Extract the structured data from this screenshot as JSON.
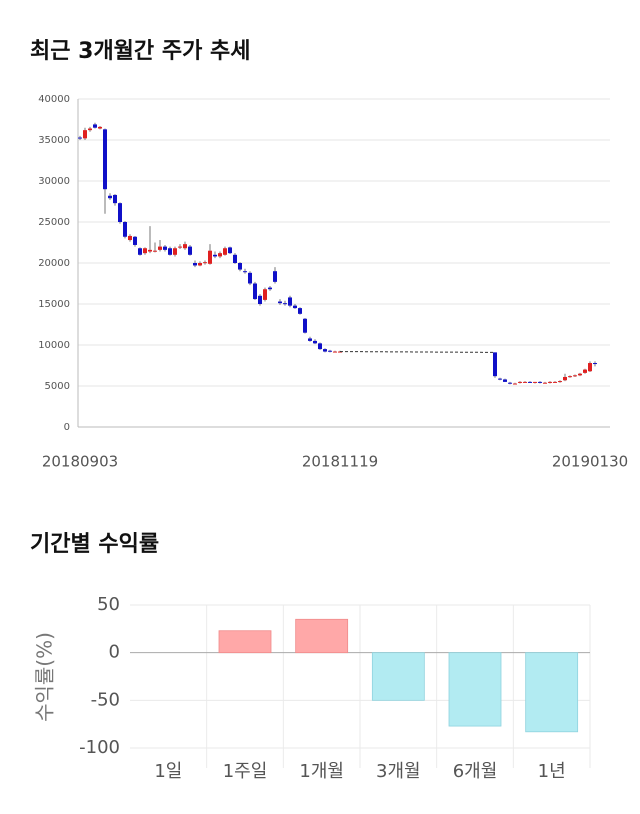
{
  "chart_data": [
    {
      "type": "candlestick",
      "title": "최근 3개월간 주가 추세",
      "categories": [
        "20180903",
        null,
        null,
        null,
        null,
        null,
        null,
        null,
        null,
        null,
        null,
        null,
        null,
        null,
        null,
        null,
        null,
        null,
        null,
        null,
        null,
        null,
        null,
        null,
        null,
        null,
        null,
        null,
        null,
        null,
        null,
        null,
        null,
        null,
        null,
        null,
        null,
        null,
        null,
        null,
        null,
        null,
        null,
        null,
        null,
        null,
        null,
        null,
        null,
        null,
        null,
        null,
        "20181119",
        null,
        null,
        null,
        null,
        null,
        null,
        null,
        null,
        null,
        null,
        null,
        null,
        null,
        null,
        null,
        null,
        null,
        null,
        null,
        null,
        null,
        null,
        null,
        null,
        null,
        null,
        null,
        null,
        null,
        null,
        null,
        null,
        null,
        null,
        null,
        null,
        null,
        null,
        null,
        null,
        null,
        null,
        null,
        null,
        null,
        null,
        null,
        null,
        null,
        "20190130",
        null
      ],
      "values": [
        [
          35300,
          35500,
          35000,
          35200
        ],
        [
          35200,
          36500,
          35000,
          36200
        ],
        [
          36200,
          36600,
          36000,
          36400
        ],
        [
          36900,
          37100,
          36400,
          36500
        ],
        [
          36400,
          36700,
          36300,
          36600
        ],
        [
          36300,
          36400,
          26000,
          29000
        ],
        [
          28200,
          28500,
          27700,
          27900
        ],
        [
          28300,
          28400,
          27000,
          27300
        ],
        [
          27300,
          27400,
          24800,
          25000
        ],
        [
          25000,
          25100,
          23000,
          23200
        ],
        [
          22800,
          23500,
          22600,
          23300
        ],
        [
          23200,
          23300,
          22000,
          22200
        ],
        [
          21800,
          21900,
          20900,
          21000
        ],
        [
          21200,
          21900,
          21000,
          21800
        ],
        [
          21400,
          24500,
          21200,
          21600
        ],
        [
          21500,
          22500,
          21300,
          21500
        ],
        [
          21600,
          22800,
          21400,
          22000
        ],
        [
          22000,
          22200,
          21400,
          21600
        ],
        [
          21800,
          22000,
          20900,
          21000
        ],
        [
          21000,
          22000,
          20800,
          21800
        ],
        [
          21900,
          22300,
          21700,
          22000
        ],
        [
          21800,
          22600,
          21600,
          22300
        ],
        [
          22000,
          22200,
          20900,
          21000
        ],
        [
          20000,
          20300,
          19500,
          19700
        ],
        [
          19700,
          20200,
          19600,
          20000
        ],
        [
          20000,
          20300,
          19800,
          20100
        ],
        [
          19900,
          22300,
          19800,
          21500
        ],
        [
          21000,
          21400,
          20600,
          20800
        ],
        [
          20800,
          21400,
          20600,
          21200
        ],
        [
          21000,
          22000,
          20900,
          21800
        ],
        [
          21900,
          22000,
          21100,
          21200
        ],
        [
          21000,
          21200,
          19900,
          20000
        ],
        [
          20000,
          20100,
          19000,
          19200
        ],
        [
          19000,
          19300,
          18700,
          18900
        ],
        [
          18800,
          19000,
          17300,
          17500
        ],
        [
          17500,
          17700,
          15500,
          15600
        ],
        [
          16000,
          16200,
          14800,
          15000
        ],
        [
          15500,
          17000,
          15300,
          16800
        ],
        [
          17000,
          17200,
          16600,
          16800
        ],
        [
          19000,
          19500,
          17500,
          17700
        ],
        [
          15300,
          15600,
          14900,
          15100
        ],
        [
          15100,
          15400,
          14800,
          15000
        ],
        [
          15800,
          16000,
          14600,
          14800
        ],
        [
          14800,
          15000,
          14400,
          14500
        ],
        [
          14500,
          14600,
          13700,
          13800
        ],
        [
          13200,
          13300,
          11400,
          11500
        ],
        [
          10800,
          11000,
          10400,
          10500
        ],
        [
          10500,
          10700,
          10100,
          10200
        ],
        [
          10200,
          10300,
          9400,
          9500
        ],
        [
          9500,
          9600,
          9100,
          9200
        ],
        [
          9300,
          9400,
          9100,
          9200
        ],
        [
          9200,
          9300,
          9100,
          9200
        ],
        [
          9200,
          9300,
          9100,
          9200
        ],
        null,
        null,
        null,
        null,
        null,
        null,
        null,
        null,
        null,
        null,
        null,
        null,
        null,
        null,
        null,
        null,
        null,
        null,
        null,
        null,
        null,
        null,
        null,
        null,
        null,
        null,
        null,
        null,
        null,
        null,
        [
          9100,
          9100,
          6000,
          6200
        ],
        [
          5900,
          6000,
          5700,
          5800
        ],
        [
          5800,
          5900,
          5500,
          5500
        ],
        [
          5400,
          5500,
          5200,
          5300
        ],
        [
          5300,
          5400,
          5200,
          5300
        ],
        [
          5400,
          5600,
          5300,
          5500
        ],
        [
          5500,
          5600,
          5400,
          5500
        ],
        [
          5500,
          5600,
          5400,
          5400
        ],
        [
          5400,
          5500,
          5300,
          5500
        ],
        [
          5500,
          5600,
          5300,
          5400
        ],
        [
          5400,
          5500,
          5300,
          5400
        ],
        [
          5400,
          5600,
          5300,
          5500
        ],
        [
          5500,
          5600,
          5400,
          5500
        ],
        [
          5500,
          5700,
          5400,
          5600
        ],
        [
          5700,
          6500,
          5600,
          6100
        ],
        [
          6100,
          6300,
          6000,
          6200
        ],
        [
          6200,
          6400,
          6100,
          6300
        ],
        [
          6300,
          6600,
          6200,
          6500
        ],
        [
          6600,
          7100,
          6500,
          7000
        ],
        [
          6800,
          8000,
          6700,
          7800
        ],
        [
          7800,
          8000,
          7400,
          7700
        ]
      ],
      "up_color": "#e02020",
      "down_color": "#1010c8",
      "ylim": [
        0,
        40000
      ],
      "yticks": [
        0,
        5000,
        10000,
        15000,
        20000,
        25000,
        30000,
        35000,
        40000
      ],
      "grid": true
    },
    {
      "type": "bar",
      "title": "기간별 수익률",
      "y_label": "수익률(%)",
      "categories": [
        "1일",
        "1주일",
        "1개월",
        "3개월",
        "6개월",
        "1년"
      ],
      "values": [
        0,
        23,
        35,
        -50,
        -77,
        -83
      ],
      "positive_color": "#ffa8a8",
      "negative_color": "#b2ebf2",
      "ylim": [
        -100,
        50
      ],
      "yticks": [
        -100,
        -50,
        0,
        50
      ],
      "grid": true
    }
  ]
}
